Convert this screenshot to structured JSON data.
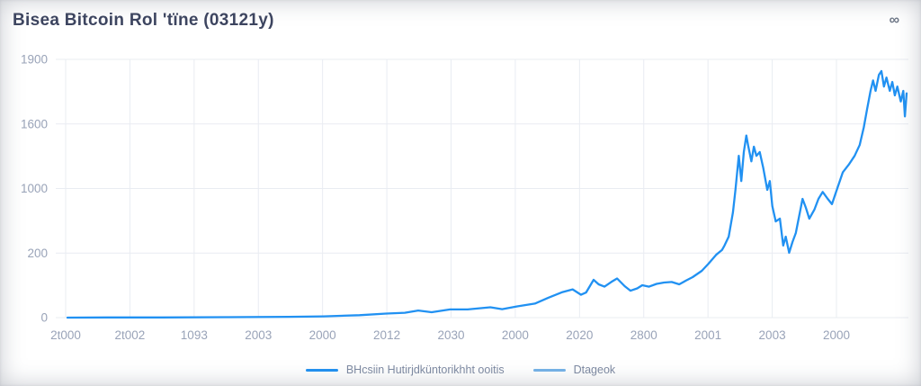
{
  "header": {
    "title": "Bisea Bitcoin Rol 'tïne (03121y)",
    "menu_icon": "∞"
  },
  "colors": {
    "title_text": "#3d4560",
    "tick_text": "#99a3b8",
    "gridline": "#e9ecf2",
    "line": "#2191f2",
    "legend_text": "#7e8aa2",
    "legend_swatch_primary": "#2191f2",
    "legend_swatch_secondary": "#76b2e8",
    "background": "#ffffff"
  },
  "chart_data": {
    "type": "line",
    "title": "Bisea Bitcoin Rol 'tïne (03121y)",
    "xlabel": "",
    "ylabel": "",
    "grid": true,
    "legend_position": "bottom",
    "ylim": [
      0,
      1900
    ],
    "y_ticks": [
      "1900",
      "1600",
      "1000",
      "200",
      "0"
    ],
    "x_ticks": [
      "2t000",
      "2t002",
      "1093",
      "2003",
      "2000",
      "2012",
      "2030",
      "2000",
      "2020",
      "2800",
      "2001",
      "2003",
      "2000"
    ],
    "legend": [
      {
        "label": "BHcsiin Hutirjdküntorikhht ooitis",
        "color": "#2191f2"
      },
      {
        "label": "Dtageok",
        "color": "#76b2e8"
      }
    ],
    "series": [
      {
        "name": "BHcsiin Hutirjdküntorikhht ooitis",
        "color": "#2191f2",
        "points": [
          [
            0.0,
            0
          ],
          [
            0.048,
            1
          ],
          [
            0.113,
            1
          ],
          [
            0.188,
            3
          ],
          [
            0.263,
            6
          ],
          [
            0.305,
            9
          ],
          [
            0.348,
            18
          ],
          [
            0.38,
            30
          ],
          [
            0.402,
            36
          ],
          [
            0.418,
            52
          ],
          [
            0.434,
            40
          ],
          [
            0.456,
            60
          ],
          [
            0.477,
            60
          ],
          [
            0.504,
            76
          ],
          [
            0.518,
            62
          ],
          [
            0.536,
            83
          ],
          [
            0.557,
            103
          ],
          [
            0.573,
            146
          ],
          [
            0.59,
            188
          ],
          [
            0.602,
            208
          ],
          [
            0.612,
            168
          ],
          [
            0.618,
            185
          ],
          [
            0.627,
            278
          ],
          [
            0.633,
            245
          ],
          [
            0.64,
            228
          ],
          [
            0.648,
            262
          ],
          [
            0.655,
            288
          ],
          [
            0.664,
            232
          ],
          [
            0.671,
            198
          ],
          [
            0.679,
            215
          ],
          [
            0.685,
            238
          ],
          [
            0.693,
            228
          ],
          [
            0.702,
            248
          ],
          [
            0.711,
            258
          ],
          [
            0.72,
            262
          ],
          [
            0.729,
            245
          ],
          [
            0.737,
            272
          ],
          [
            0.745,
            298
          ],
          [
            0.756,
            344
          ],
          [
            0.764,
            397
          ],
          [
            0.773,
            462
          ],
          [
            0.78,
            497
          ],
          [
            0.783,
            530
          ],
          [
            0.788,
            596
          ],
          [
            0.793,
            774
          ],
          [
            0.796,
            940
          ],
          [
            0.8,
            1190
          ],
          [
            0.803,
            1005
          ],
          [
            0.806,
            1218
          ],
          [
            0.809,
            1340
          ],
          [
            0.811,
            1270
          ],
          [
            0.815,
            1150
          ],
          [
            0.818,
            1258
          ],
          [
            0.821,
            1190
          ],
          [
            0.825,
            1218
          ],
          [
            0.829,
            1105
          ],
          [
            0.834,
            940
          ],
          [
            0.837,
            1005
          ],
          [
            0.84,
            820
          ],
          [
            0.844,
            708
          ],
          [
            0.849,
            728
          ],
          [
            0.853,
            530
          ],
          [
            0.856,
            596
          ],
          [
            0.86,
            477
          ],
          [
            0.864,
            556
          ],
          [
            0.868,
            622
          ],
          [
            0.876,
            874
          ],
          [
            0.88,
            808
          ],
          [
            0.884,
            728
          ],
          [
            0.89,
            794
          ],
          [
            0.895,
            874
          ],
          [
            0.9,
            925
          ],
          [
            0.906,
            874
          ],
          [
            0.911,
            835
          ],
          [
            0.916,
            925
          ],
          [
            0.924,
            1070
          ],
          [
            0.931,
            1125
          ],
          [
            0.938,
            1190
          ],
          [
            0.944,
            1270
          ],
          [
            0.949,
            1400
          ],
          [
            0.953,
            1535
          ],
          [
            0.957,
            1668
          ],
          [
            0.96,
            1745
          ],
          [
            0.963,
            1668
          ],
          [
            0.967,
            1787
          ],
          [
            0.97,
            1814
          ],
          [
            0.973,
            1700
          ],
          [
            0.976,
            1766
          ],
          [
            0.98,
            1668
          ],
          [
            0.983,
            1734
          ],
          [
            0.986,
            1635
          ],
          [
            0.989,
            1700
          ],
          [
            0.993,
            1590
          ],
          [
            0.996,
            1668
          ],
          [
            0.998,
            1480
          ],
          [
            1.0,
            1650
          ]
        ]
      }
    ]
  }
}
